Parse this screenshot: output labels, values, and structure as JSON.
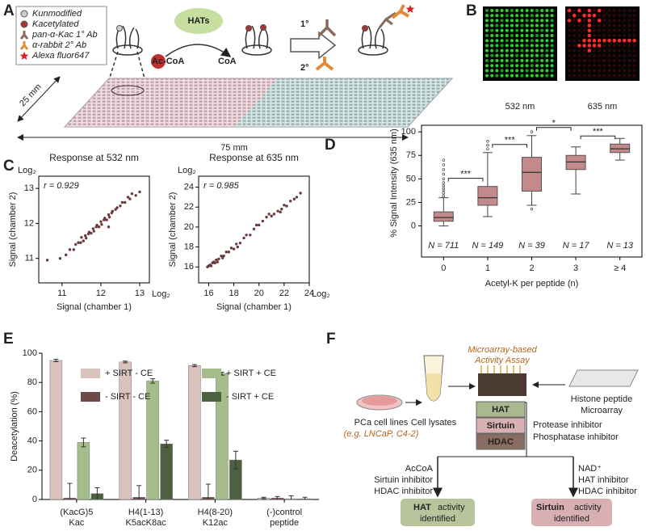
{
  "panel_labels": [
    "A",
    "B",
    "C",
    "D",
    "E",
    "F"
  ],
  "panel_a": {
    "legend": [
      "Kunmodified",
      "Kacetylated",
      "pan-α-Kac 1° Ab",
      "α-rabbit 2° Ab",
      "Alexa fluor647"
    ],
    "enzyme": "HATs",
    "donor": "Ac-CoA",
    "product": "CoA",
    "primary": "1°",
    "secondary": "2°",
    "width": "25 mm",
    "length": "75 mm"
  },
  "panel_b": {
    "wavelengths": [
      "532 nm",
      "635 nm"
    ]
  },
  "chart_data": [
    {
      "type": "scatter",
      "title": "Response at 532 nm",
      "annotation": "r = 0.929",
      "x_label": "Signal (chamber 1)",
      "y_label": "Signal (chamber 2)",
      "x_unit": "Log₂",
      "y_unit": "Log₂",
      "color": "#6b3a3a",
      "xlim": [
        10.4,
        13.25
      ],
      "ylim": [
        10.3,
        13.35
      ],
      "xticks": [
        11,
        12,
        13
      ],
      "yticks": [
        11,
        12,
        13
      ],
      "x": [
        10.62,
        10.95,
        11.1,
        11.2,
        11.3,
        11.35,
        11.42,
        11.48,
        11.5,
        11.55,
        11.6,
        11.62,
        11.68,
        11.7,
        11.75,
        11.8,
        11.82,
        11.88,
        11.9,
        11.95,
        12.0,
        12.02,
        12.08,
        12.1,
        12.15,
        12.2,
        12.22,
        12.28,
        12.3,
        12.38,
        12.42,
        12.5,
        12.55,
        12.62,
        12.7,
        12.75,
        12.8,
        12.9,
        13.0,
        12.2
      ],
      "y": [
        10.95,
        11.0,
        11.1,
        11.25,
        11.25,
        11.4,
        11.45,
        11.45,
        11.6,
        11.5,
        11.65,
        11.58,
        11.7,
        11.75,
        11.72,
        11.85,
        11.78,
        11.9,
        11.95,
        11.9,
        12.05,
        11.97,
        12.1,
        12.15,
        12.1,
        12.25,
        12.18,
        12.3,
        12.35,
        12.4,
        12.45,
        12.5,
        12.6,
        12.6,
        12.75,
        12.7,
        12.85,
        12.8,
        12.9,
        11.9
      ]
    },
    {
      "type": "scatter",
      "title": "Response at 635 nm",
      "annotation": "r = 0.985",
      "x_label": "Signal (chamber 1)",
      "y_label": "Signal (chamber 2)",
      "x_unit": "Log₂",
      "y_unit": "Log₂",
      "color": "#6b3a3a",
      "xlim": [
        15.2,
        24
      ],
      "ylim": [
        14.4,
        25.1
      ],
      "xticks": [
        16,
        18,
        20,
        22,
        24
      ],
      "yticks": [
        16,
        18,
        20,
        22,
        24
      ],
      "x": [
        15.9,
        16.0,
        16.1,
        16.2,
        16.3,
        16.4,
        16.5,
        16.6,
        16.8,
        17.0,
        17.2,
        17.4,
        17.6,
        17.8,
        18.0,
        18.2,
        18.5,
        18.8,
        19.0,
        19.3,
        19.6,
        20.0,
        20.3,
        20.6,
        21.0,
        21.2,
        21.5,
        21.8,
        22.0,
        22.2,
        22.5,
        22.8,
        23.0,
        23.3,
        16.7,
        17.1,
        18.3,
        19.8,
        20.8,
        21.7
      ],
      "y": [
        16.0,
        16.1,
        16.2,
        16.1,
        16.4,
        16.5,
        16.4,
        16.7,
        16.8,
        17.1,
        17.1,
        17.5,
        17.5,
        17.9,
        17.8,
        18.3,
        18.4,
        18.9,
        19.2,
        19.2,
        19.8,
        20.2,
        20.6,
        21.0,
        21.1,
        21.3,
        21.6,
        21.8,
        22.2,
        22.1,
        22.6,
        22.8,
        23.0,
        23.4,
        16.5,
        16.9,
        18.0,
        20.2,
        21.3,
        21.5
      ]
    },
    {
      "type": "box",
      "y_label": "% Signal Intensity (635 nm)",
      "x_label": "Acetyl-K per peptide (n)",
      "color": "#c4898b",
      "ylim": [
        -33,
        107
      ],
      "yticks": [
        0,
        25,
        50,
        75,
        100
      ],
      "categories": [
        "0",
        "1",
        "2",
        "3",
        "≥ 4"
      ],
      "n_labels": [
        "N = 711",
        "N = 149",
        "N = 39",
        "N = 17",
        "N = 13"
      ],
      "boxes": [
        {
          "min": 0,
          "q1": 5,
          "median": 9,
          "q3": 15,
          "max": 30,
          "outliers": [
            32,
            35,
            38,
            40,
            43,
            46,
            50,
            55,
            60,
            65,
            70
          ]
        },
        {
          "min": 10,
          "q1": 22,
          "median": 30,
          "q3": 42,
          "max": 78,
          "outliers": [
            82,
            86,
            90
          ]
        },
        {
          "min": 22,
          "q1": 37,
          "median": 57,
          "q3": 73,
          "max": 96,
          "outliers": [
            18,
            100
          ]
        },
        {
          "min": 34,
          "q1": 60,
          "median": 68,
          "q3": 75,
          "max": 84,
          "outliers": []
        },
        {
          "min": 70,
          "q1": 78,
          "median": 82,
          "q3": 87,
          "max": 93,
          "outliers": []
        }
      ],
      "annotations": [
        "***",
        "***",
        "*",
        "***"
      ]
    },
    {
      "type": "bar",
      "y_label": "Deacetylation (%)",
      "ylim": [
        0,
        100
      ],
      "yticks": [
        0,
        20,
        40,
        60,
        80,
        100
      ],
      "categories": [
        [
          "(KacG)5",
          "Kac"
        ],
        [
          "H4(1-13)",
          "K5acK8ac"
        ],
        [
          "H4(8-20)",
          "K12ac"
        ],
        [
          "(-)control",
          "peptide"
        ]
      ],
      "series": [
        {
          "name": "+ SIRT - CE",
          "color": "#d9c3bc",
          "values": [
            95,
            94,
            91.5,
            1
          ],
          "errors": [
            0.8,
            0.6,
            0.7,
            0.5
          ]
        },
        {
          "name": "- SIRT - CE",
          "color": "#6b4a4a",
          "values": [
            1,
            1.5,
            1.5,
            1
          ],
          "errors": [
            10,
            8,
            9,
            1
          ]
        },
        {
          "name": "+ SIRT + CE",
          "color": "#a5bd8a",
          "values": [
            39,
            81,
            86,
            0.5
          ],
          "errors": [
            3,
            1.5,
            1,
            2
          ]
        },
        {
          "name": "- SIRT + CE",
          "color": "#4d6040",
          "values": [
            4,
            38,
            27,
            0.5
          ],
          "errors": [
            4,
            2.5,
            6,
            1
          ]
        }
      ]
    }
  ],
  "panel_f": {
    "cells": [
      "PCa cell lines",
      "(e.g. LNCaP, C4-2)"
    ],
    "lysate": "Cell lysates",
    "assay": [
      "Microarray-based",
      "Activity Assay"
    ],
    "slide": [
      "Histone peptide",
      "Microarray"
    ],
    "enzymes": [
      "HAT",
      "Sirtuin",
      "HDAC"
    ],
    "inhibitors": [
      "Protease inhibitor",
      "Phosphatase inhibitor"
    ],
    "left_conditions": [
      "AcCoA",
      "Sirtuin inhibitor",
      "HDAC inhibitor"
    ],
    "right_conditions": [
      "NAD⁺",
      "HAT inhibitor",
      "HDAC inhibitor"
    ],
    "outcomes": [
      [
        "HAT",
        "activity",
        "identified"
      ],
      [
        "Sirtuin",
        "activity",
        "identified"
      ]
    ]
  }
}
